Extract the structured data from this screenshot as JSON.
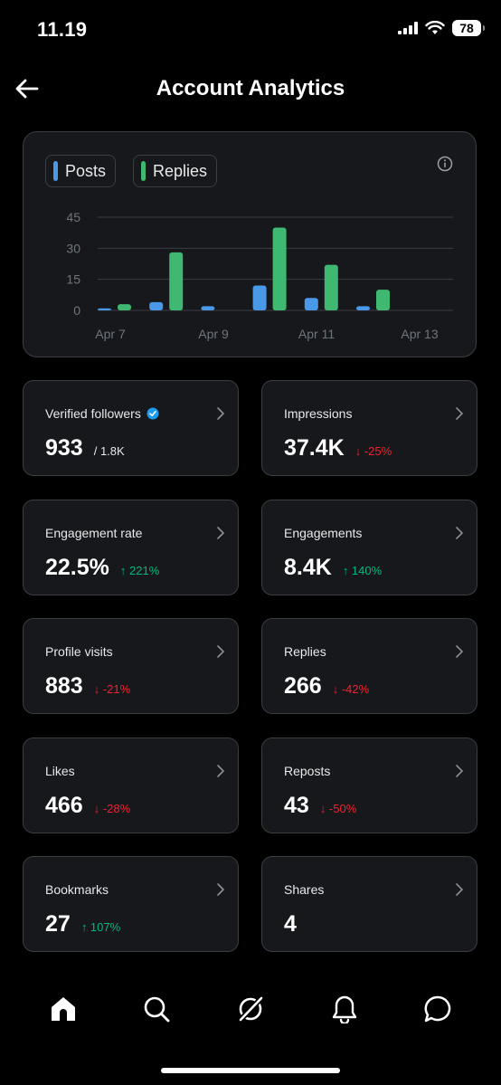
{
  "status": {
    "time": "11.19",
    "battery": "78"
  },
  "header": {
    "title": "Account Analytics"
  },
  "legend": {
    "posts": "Posts",
    "replies": "Replies"
  },
  "colors": {
    "posts": "#4a99e9",
    "replies": "#3fb872",
    "down": "#f4212e",
    "up": "#00ba7c"
  },
  "chart_data": {
    "type": "bar",
    "x_tick_labels": [
      "Apr 7",
      "Apr 9",
      "Apr 11",
      "Apr 13"
    ],
    "categories": [
      "Apr 7",
      "Apr 8",
      "Apr 9",
      "Apr 10",
      "Apr 11",
      "Apr 12"
    ],
    "series": [
      {
        "name": "Posts",
        "values": [
          1,
          4,
          2,
          12,
          6,
          2
        ]
      },
      {
        "name": "Replies",
        "values": [
          3,
          28,
          0,
          40,
          22,
          10
        ]
      }
    ],
    "yticks": [
      0,
      15,
      30,
      45
    ],
    "ylim": [
      0,
      45
    ],
    "grid": true
  },
  "stats": [
    {
      "label": "Verified followers",
      "value": "933",
      "sub": "/ 1.8K",
      "delta": "",
      "dir": ""
    },
    {
      "label": "Impressions",
      "value": "37.4K",
      "sub": "",
      "delta": "↓ -25%",
      "dir": "down"
    },
    {
      "label": "Engagement rate",
      "value": "22.5%",
      "sub": "",
      "delta": "↑ 221%",
      "dir": "up"
    },
    {
      "label": "Engagements",
      "value": "8.4K",
      "sub": "",
      "delta": "↑ 140%",
      "dir": "up"
    },
    {
      "label": "Profile visits",
      "value": "883",
      "sub": "",
      "delta": "↓ -21%",
      "dir": "down"
    },
    {
      "label": "Replies",
      "value": "266",
      "sub": "",
      "delta": "↓ -42%",
      "dir": "down"
    },
    {
      "label": "Likes",
      "value": "466",
      "sub": "",
      "delta": "↓ -28%",
      "dir": "down"
    },
    {
      "label": "Reposts",
      "value": "43",
      "sub": "",
      "delta": "↓ -50%",
      "dir": "down"
    },
    {
      "label": "Bookmarks",
      "value": "27",
      "sub": "",
      "delta": "↑ 107%",
      "dir": "up"
    },
    {
      "label": "Shares",
      "value": "4",
      "sub": "",
      "delta": "",
      "dir": ""
    }
  ],
  "nav": [
    "home-icon",
    "search-icon",
    "grok-icon",
    "notifications-icon",
    "messages-icon"
  ]
}
